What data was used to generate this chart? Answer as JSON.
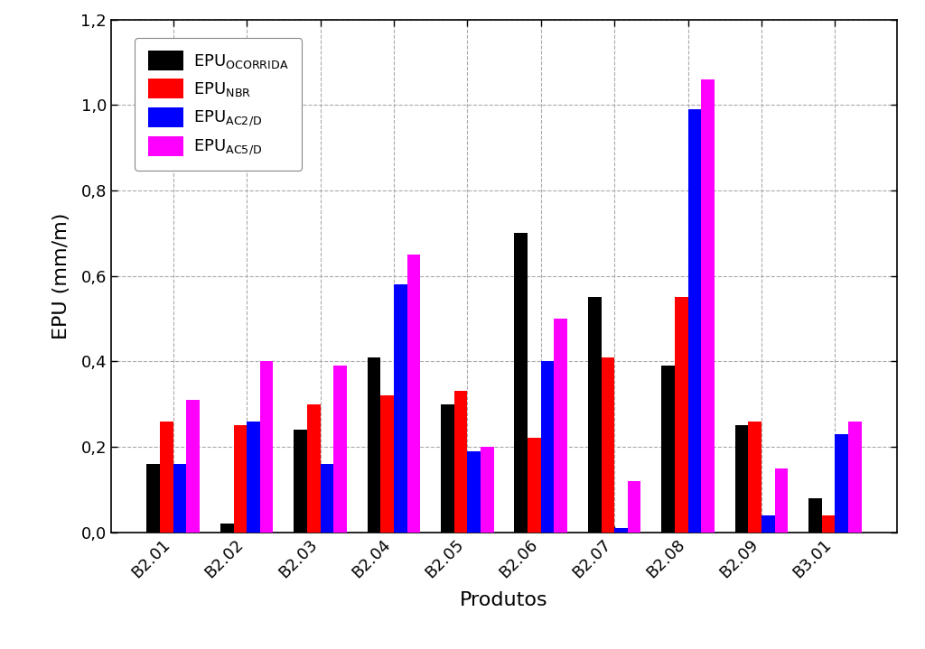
{
  "categories": [
    "B2.01",
    "B2.02",
    "B2.03",
    "B2.04",
    "B2.05",
    "B2.06",
    "B2.07",
    "B2.08",
    "B2.09",
    "B3.01"
  ],
  "series": {
    "EPU_OCORRIDA": [
      0.16,
      0.02,
      0.24,
      0.41,
      0.3,
      0.7,
      0.55,
      0.39,
      0.25,
      0.08
    ],
    "EPU_NBR": [
      0.26,
      0.25,
      0.3,
      0.32,
      0.33,
      0.22,
      0.41,
      0.55,
      0.26,
      0.04
    ],
    "EPU_AC2D": [
      0.16,
      0.26,
      0.16,
      0.58,
      0.19,
      0.4,
      0.01,
      0.99,
      0.04,
      0.23
    ],
    "EPU_AC5D": [
      0.31,
      0.4,
      0.39,
      0.65,
      0.2,
      0.5,
      0.12,
      1.06,
      0.15,
      0.26
    ]
  },
  "colors": {
    "EPU_OCORRIDA": "#000000",
    "EPU_NBR": "#ff0000",
    "EPU_AC2D": "#0000ff",
    "EPU_AC5D": "#ff00ff"
  },
  "xlabel": "Produtos",
  "ylabel": "EPU (mm/m)",
  "ylim": [
    0.0,
    1.2
  ],
  "yticks": [
    0.0,
    0.2,
    0.4,
    0.6,
    0.8,
    1.0,
    1.2
  ],
  "ytick_labels": [
    "0,0",
    "0,2",
    "0,4",
    "0,6",
    "0,8",
    "1,0",
    "1,2"
  ],
  "background_color": "#ffffff",
  "grid_color": "#aaaaaa",
  "bar_width": 0.18,
  "legend_labels": [
    "EPU$_{\\mathrm{OCORRIDA}}$",
    "EPU$_{\\mathrm{NBR}}$",
    "EPU$_{\\mathrm{AC2/D}}$",
    "EPU$_{\\mathrm{AC5/D}}$"
  ],
  "xtick_rotation": 45,
  "figsize": [
    10.24,
    7.19
  ],
  "dpi": 100
}
